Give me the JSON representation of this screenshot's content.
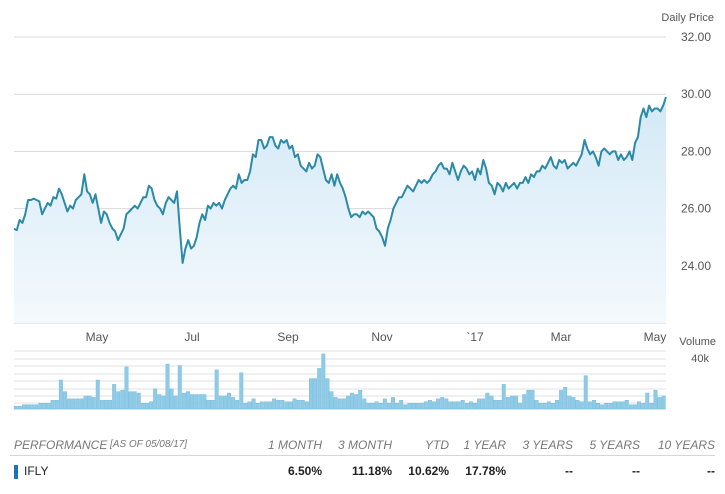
{
  "chart_data": [
    {
      "type": "area",
      "ylabel": "Daily Price",
      "ylim": [
        22.0,
        32.0
      ],
      "yticks": [
        "24.00",
        "26.00",
        "28.00",
        "30.00",
        "32.00"
      ],
      "xticks": [
        "May",
        "Jul",
        "Sep",
        "Nov",
        "`17",
        "Mar",
        "May"
      ],
      "series": [
        {
          "values": [
            25.3,
            25.25,
            25.6,
            25.5,
            25.8,
            26.3,
            26.3,
            26.35,
            26.3,
            26.25,
            25.8,
            26.0,
            26.2,
            26.1,
            26.4,
            26.35,
            26.7,
            26.5,
            26.2,
            25.9,
            26.1,
            26.0,
            26.3,
            26.4,
            26.5,
            27.2,
            26.6,
            26.5,
            26.2,
            26.5,
            26.0,
            25.5,
            25.9,
            25.8,
            25.5,
            25.3,
            25.2,
            24.9,
            25.1,
            25.3,
            25.8,
            25.9,
            26.0,
            26.1,
            26.0,
            26.2,
            26.4,
            26.4,
            26.8,
            26.7,
            26.3,
            26.1,
            26.0,
            25.8,
            26.2,
            26.4,
            26.3,
            26.2,
            26.6,
            25.3,
            24.1,
            24.6,
            24.9,
            24.6,
            24.7,
            25.0,
            25.5,
            25.8,
            25.6,
            26.1,
            26.0,
            26.2,
            26.1,
            26.2,
            26.0,
            26.3,
            26.5,
            26.7,
            26.8,
            26.7,
            27.2,
            26.9,
            27.0,
            27.0,
            27.3,
            27.9,
            27.8,
            28.4,
            28.4,
            28.1,
            28.2,
            28.5,
            28.5,
            28.2,
            28.1,
            28.4,
            28.3,
            28.4,
            28.1,
            28.2,
            27.8,
            27.9,
            27.5,
            27.4,
            27.3,
            27.6,
            27.4,
            27.5,
            27.9,
            27.8,
            27.4,
            27.0,
            26.9,
            27.2,
            26.8,
            27.2,
            26.9,
            26.7,
            26.4,
            26.0,
            25.7,
            25.8,
            25.8,
            25.7,
            25.9,
            25.8,
            25.9,
            25.8,
            25.7,
            25.3,
            25.2,
            25.0,
            24.7,
            25.3,
            25.6,
            26.0,
            26.2,
            26.4,
            26.4,
            26.6,
            26.8,
            26.7,
            26.6,
            26.8,
            27.0,
            26.9,
            27.0,
            26.9,
            27.0,
            27.2,
            27.3,
            27.5,
            27.6,
            27.4,
            27.4,
            27.2,
            27.6,
            27.3,
            27.0,
            27.3,
            27.5,
            27.4,
            27.2,
            27.3,
            27.0,
            27.4,
            27.2,
            27.7,
            27.4,
            26.9,
            26.8,
            26.5,
            26.9,
            26.8,
            26.6,
            26.9,
            26.7,
            26.8,
            26.9,
            26.7,
            26.9,
            26.9,
            27.1,
            26.9,
            27.2,
            27.1,
            27.3,
            27.3,
            27.5,
            27.4,
            27.6,
            27.8,
            27.5,
            27.4,
            27.7,
            27.6,
            27.7,
            27.4,
            27.5,
            27.6,
            27.5,
            27.7,
            27.9,
            28.4,
            28.1,
            27.9,
            28.0,
            27.8,
            27.5,
            28.0,
            28.1,
            28.0,
            27.9,
            28.0,
            28.0,
            27.7,
            27.9,
            27.7,
            27.8,
            28.0,
            27.7,
            28.3,
            28.5,
            29.2,
            29.5,
            29.2,
            29.6,
            29.4,
            29.5,
            29.5,
            29.4,
            29.6,
            29.9
          ]
        }
      ]
    },
    {
      "type": "bar",
      "ylabel": "Volume",
      "ytick": "40k",
      "values": [
        2,
        2,
        3,
        3,
        3,
        3,
        4,
        4,
        4,
        6,
        6,
        20,
        12,
        7,
        7,
        7,
        7,
        9,
        9,
        8,
        20,
        6,
        6,
        6,
        17,
        12,
        13,
        29,
        12,
        12,
        11,
        4,
        4,
        5,
        14,
        10,
        9,
        31,
        14,
        9,
        30,
        11,
        12,
        10,
        10,
        10,
        10,
        6,
        6,
        27,
        9,
        9,
        11,
        8,
        6,
        25,
        4,
        5,
        7,
        4,
        5,
        5,
        5,
        7,
        6,
        6,
        5,
        5,
        7,
        6,
        6,
        5,
        21,
        21,
        28,
        38,
        21,
        12,
        8,
        7,
        7,
        9,
        11,
        10,
        13,
        7,
        4,
        4,
        5,
        4,
        7,
        4,
        8,
        4,
        6,
        3,
        4,
        4,
        4,
        4,
        5,
        6,
        5,
        7,
        8,
        7,
        5,
        5,
        5,
        6,
        4,
        5,
        4,
        7,
        7,
        11,
        9,
        6,
        6,
        17,
        8,
        9,
        9,
        4,
        10,
        13,
        13,
        6,
        4,
        4,
        5,
        4,
        6,
        13,
        15,
        9,
        8,
        6,
        5,
        23,
        5,
        6,
        4,
        3,
        4,
        4,
        5,
        5,
        5,
        6,
        3,
        3,
        5,
        4,
        11,
        4,
        13,
        8,
        9
      ]
    }
  ],
  "performance": {
    "label": "PERFORMANCE",
    "as_of": "[AS OF 05/08/17]",
    "columns": [
      "1 MONTH",
      "3 MONTH",
      "YTD",
      "1 YEAR",
      "3 YEARS",
      "5 YEARS",
      "10 YEARS"
    ],
    "ticker": "IFLY",
    "ticker_color": "#1c75bc",
    "values": [
      "6.50%",
      "11.18%",
      "10.62%",
      "17.78%",
      "--",
      "--",
      "--"
    ]
  },
  "colors": {
    "line": "#2b8aa8",
    "area_top": "#d3e9f6",
    "area_bottom": "#f4f9fd",
    "volume_bar": "#8fcbe6",
    "grid": "#d9d9d9"
  }
}
